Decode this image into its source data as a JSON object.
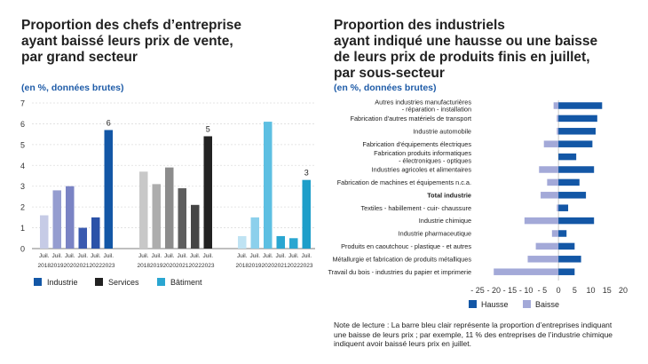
{
  "left": {
    "title_lines": [
      "Proportion des chefs d’entreprise",
      "ayant baissé leurs prix de vente,",
      "par grand secteur"
    ],
    "subtitle": "(en %, données brutes)",
    "legend": [
      {
        "label": "Industrie",
        "color": "#1357a6"
      },
      {
        "label": "Services",
        "color": "#222222"
      },
      {
        "label": "Bâtiment",
        "color": "#2aa6d1"
      }
    ]
  },
  "right": {
    "title_lines": [
      "Proportion des industriels",
      "ayant indiqué une hausse ou une baisse",
      "de leurs prix de produits finis en juillet,",
      "par sous-secteur"
    ],
    "subtitle": "(en %, données brutes)",
    "legend": [
      {
        "label": "Hausse",
        "color": "#1357a6"
      },
      {
        "label": "Baisse",
        "color": "#a3a9d8"
      }
    ],
    "note": "Note de lecture : La barre bleu clair représente la proportion d’entreprises indiquant une baisse de leurs prix ; par exemple, 11 % des entreprises de l’industrie chimique indiquent avoir baissé leurs prix en juillet."
  },
  "chart_data": [
    {
      "type": "bar",
      "title": "Proportion des chefs d’entreprise ayant baissé leurs prix de vente, par grand secteur",
      "ylabel": "(en %, données brutes)",
      "ylim": [
        0,
        7
      ],
      "yticks": [
        0,
        1,
        2,
        3,
        4,
        5,
        6,
        7
      ],
      "tick_month": "Juil.",
      "years": [
        "2018",
        "2019",
        "2020",
        "2021",
        "2022",
        "2023"
      ],
      "series": [
        {
          "name": "Industrie",
          "values": [
            1.6,
            2.8,
            3.0,
            1.0,
            1.5,
            5.7
          ],
          "colors": [
            "#c6cbe6",
            "#959dd0",
            "#7a83c4",
            "#3a5ab0",
            "#2b52a8",
            "#1357a6"
          ],
          "end_label": "6"
        },
        {
          "name": "Services",
          "values": [
            3.7,
            3.1,
            3.9,
            2.9,
            2.1,
            5.4
          ],
          "colors": [
            "#c8c8c8",
            "#adadad",
            "#8c8c8c",
            "#5e5e5e",
            "#454545",
            "#222222"
          ],
          "end_label": "5"
        },
        {
          "name": "Bâtiment",
          "values": [
            0.6,
            1.5,
            6.1,
            0.6,
            0.5,
            3.3
          ],
          "colors": [
            "#bfe3f3",
            "#8cd0ec",
            "#5dbfe2",
            "#2aa6d1",
            "#2aa6d1",
            "#1d9ec9"
          ],
          "end_label": "3"
        }
      ]
    },
    {
      "type": "bar",
      "orientation": "horizontal",
      "title": "Proportion des industriels ayant indiqué une hausse ou une baisse de leurs prix de produits finis en juillet, par sous-secteur",
      "xlim": [
        -25,
        20
      ],
      "xticks": [
        "- 25",
        "- 20",
        "- 15",
        "- 10",
        "- 5",
        "0",
        "5",
        "10",
        "15",
        "20"
      ],
      "categories": [
        {
          "lines": [
            "Autres industries manufacturières",
            "- réparation - installation"
          ],
          "bold": false
        },
        {
          "lines": [
            "Fabrication d'autres matériels de transport"
          ],
          "bold": false
        },
        {
          "lines": [
            "Industrie automobile"
          ],
          "bold": false
        },
        {
          "lines": [
            "Fabrication d'équipements électriques"
          ],
          "bold": false
        },
        {
          "lines": [
            "Fabrication produits informatiques",
            "- électroniques - optiques"
          ],
          "bold": false
        },
        {
          "lines": [
            "Industries agricoles et alimentaires"
          ],
          "bold": false
        },
        {
          "lines": [
            "Fabrication de machines et équipements n.c.a."
          ],
          "bold": false
        },
        {
          "lines": [
            "Total industrie"
          ],
          "bold": true
        },
        {
          "lines": [
            "Textiles - habillement - cuir- chaussure"
          ],
          "bold": false
        },
        {
          "lines": [
            "Industrie chimique"
          ],
          "bold": false
        },
        {
          "lines": [
            "Industrie pharmaceutique"
          ],
          "bold": false
        },
        {
          "lines": [
            "Produits en caoutchouc - plastique - et autres"
          ],
          "bold": false
        },
        {
          "lines": [
            "Métallurgie et fabrication de produits métalliques"
          ],
          "bold": false
        },
        {
          "lines": [
            "Travail du bois - industries du papier et imprimerie"
          ],
          "bold": false
        }
      ],
      "series": [
        {
          "name": "Hausse",
          "values": [
            13.5,
            12,
            11.5,
            10.5,
            5.5,
            11,
            6.5,
            8.5,
            3,
            11,
            2.5,
            5,
            7,
            5
          ],
          "color": "#1357a6"
        },
        {
          "name": "Baisse",
          "values": [
            -1.5,
            -0.5,
            -0.5,
            -4.5,
            0,
            -6,
            -3.5,
            -5.5,
            -0.5,
            -10.5,
            -2,
            -7,
            -9.5,
            -20
          ],
          "color": "#a3a9d8"
        }
      ]
    }
  ]
}
